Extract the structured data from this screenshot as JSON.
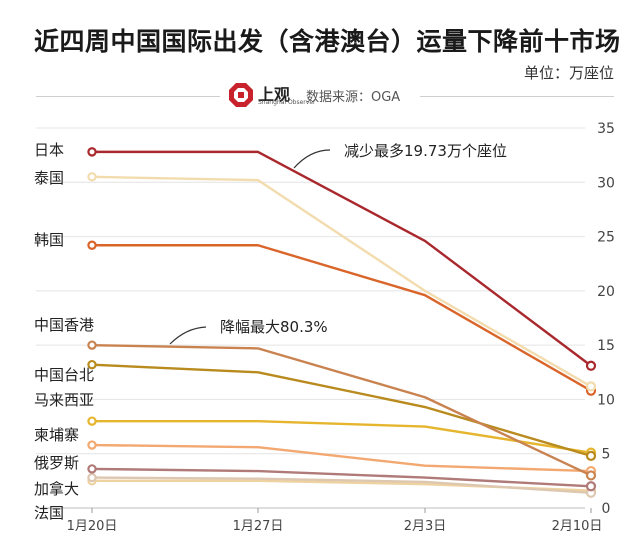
{
  "header": {
    "title": "近四周中国国际出发（含港澳台）运量下降前十市场",
    "unit": "单位：万座位",
    "logo_text": "上观",
    "logo_subtext": "Shanghai Observer",
    "source": "数据来源：OGA"
  },
  "chart_data": {
    "type": "line",
    "x": [
      "1月20日",
      "1月27日",
      "2月3日",
      "2月10日"
    ],
    "yticks": [
      0,
      5,
      10,
      15,
      20,
      25,
      30,
      35
    ],
    "ylim": [
      0,
      35
    ],
    "grid": true,
    "grid_axis": "y",
    "yaxis_position": "right",
    "series": [
      {
        "name": "日本",
        "color": "#a9282d",
        "values": [
          32.8,
          32.8,
          24.6,
          13.1
        ]
      },
      {
        "name": "泰国",
        "color": "#f2dcae",
        "values": [
          30.5,
          30.2,
          20.0,
          11.2
        ]
      },
      {
        "name": "韩国",
        "color": "#d9652a",
        "values": [
          24.2,
          24.2,
          19.6,
          10.8
        ]
      },
      {
        "name": "中国香港",
        "color": "#c98350",
        "values": [
          15.0,
          14.7,
          10.2,
          3.0
        ]
      },
      {
        "name": "中国台北",
        "color": "#b98a1e",
        "values": [
          13.2,
          12.5,
          9.3,
          4.8
        ]
      },
      {
        "name": "马来西亚",
        "color": "#e6b52e",
        "values": [
          8.0,
          8.0,
          7.5,
          5.1
        ]
      },
      {
        "name": "柬埔寨",
        "color": "#f2a870",
        "values": [
          5.8,
          5.6,
          3.9,
          3.4
        ]
      },
      {
        "name": "俄罗斯",
        "color": "#b07a78",
        "values": [
          3.6,
          3.4,
          2.8,
          2.0
        ]
      },
      {
        "name": "加拿大",
        "color": "#ddc7b0",
        "values": [
          2.8,
          2.7,
          2.4,
          1.4
        ]
      },
      {
        "name": "法国",
        "color": "#eed2a0",
        "values": [
          2.5,
          2.5,
          2.2,
          1.6
        ]
      }
    ],
    "annotations": [
      {
        "text": "减少最多19.73万个座位",
        "series": "日本"
      },
      {
        "text": "降幅最大80.3%",
        "series": "中国香港"
      }
    ]
  }
}
